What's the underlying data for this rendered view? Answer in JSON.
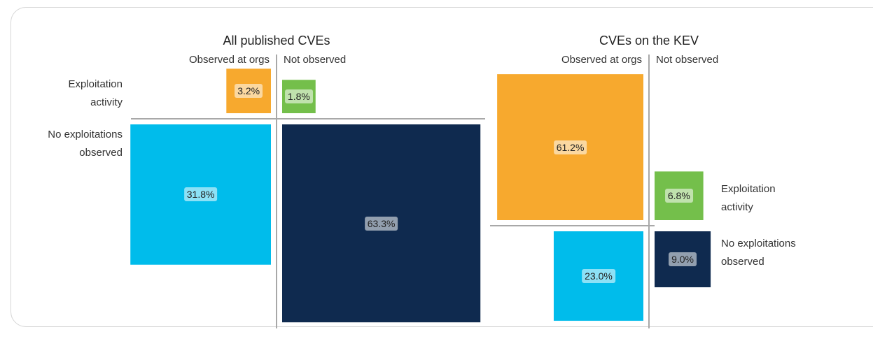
{
  "chart_data": [
    {
      "type": "quadrant",
      "title": "All published CVEs",
      "columns": [
        "Observed at orgs",
        "Not observed"
      ],
      "rows": [
        "Exploitation activity",
        "No exploitations observed"
      ],
      "values": [
        [
          3.2,
          1.8
        ],
        [
          31.8,
          63.3
        ]
      ],
      "value_labels": [
        [
          "3.2%",
          "1.8%"
        ],
        [
          "31.8%",
          "63.3%"
        ]
      ],
      "colors": [
        [
          "#f7a92e",
          "#74bf4b"
        ],
        [
          "#00bceb",
          "#0f2a4f"
        ]
      ],
      "row_label_side": "left"
    },
    {
      "type": "quadrant",
      "title": "CVEs on the KEV",
      "columns": [
        "Observed at orgs",
        "Not observed"
      ],
      "rows": [
        "Exploitation activity",
        "No exploitations observed"
      ],
      "values": [
        [
          61.2,
          6.8
        ],
        [
          23.0,
          9.0
        ]
      ],
      "value_labels": [
        [
          "61.2%",
          "6.8%"
        ],
        [
          "23.0%",
          "9.0%"
        ]
      ],
      "colors": [
        [
          "#f7a92e",
          "#74bf4b"
        ],
        [
          "#00bceb",
          "#0f2a4f"
        ]
      ],
      "row_label_side": "right"
    }
  ]
}
